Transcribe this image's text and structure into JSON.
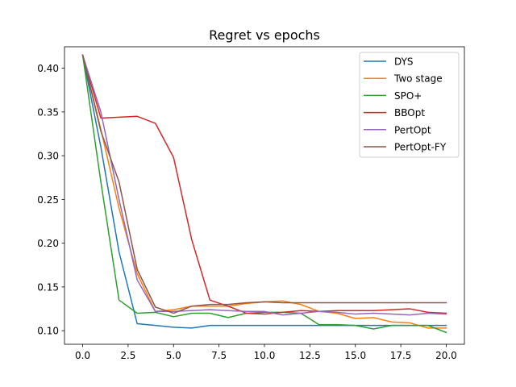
{
  "chart_data": {
    "type": "line",
    "title": "Regret vs epochs",
    "xlabel": "",
    "ylabel": "",
    "xlim": [
      -1.0,
      21.0
    ],
    "ylim": [
      0.0845,
      0.4245
    ],
    "xticks": [
      0.0,
      2.5,
      5.0,
      7.5,
      10.0,
      12.5,
      15.0,
      17.5,
      20.0
    ],
    "xtick_labels": [
      "0.0",
      "2.5",
      "5.0",
      "7.5",
      "10.0",
      "12.5",
      "15.0",
      "17.5",
      "20.0"
    ],
    "yticks": [
      0.1,
      0.15,
      0.2,
      0.25,
      0.3,
      0.35,
      0.4
    ],
    "ytick_labels": [
      "0.10",
      "0.15",
      "0.20",
      "0.25",
      "0.30",
      "0.35",
      "0.40"
    ],
    "grid": false,
    "legend_position": "top-right",
    "x": [
      0,
      1,
      2,
      3,
      4,
      5,
      6,
      7,
      8,
      9,
      10,
      11,
      12,
      13,
      14,
      15,
      16,
      17,
      18,
      19,
      20
    ],
    "series": [
      {
        "name": "DYS",
        "color": "#1f77b4",
        "values": [
          0.415,
          0.31,
          0.19,
          0.108,
          0.106,
          0.104,
          0.103,
          0.106,
          0.106,
          0.106,
          0.106,
          0.106,
          0.106,
          0.106,
          0.106,
          0.106,
          0.106,
          0.106,
          0.106,
          0.106,
          0.106
        ]
      },
      {
        "name": "Two stage",
        "color": "#ff7f0e",
        "values": [
          0.415,
          0.33,
          0.24,
          0.165,
          0.122,
          0.124,
          0.128,
          0.128,
          0.128,
          0.131,
          0.133,
          0.134,
          0.13,
          0.122,
          0.12,
          0.114,
          0.115,
          0.11,
          0.109,
          0.103,
          0.103
        ]
      },
      {
        "name": "SPO+",
        "color": "#2ca02c",
        "values": [
          0.415,
          0.27,
          0.135,
          0.12,
          0.121,
          0.116,
          0.12,
          0.12,
          0.115,
          0.12,
          0.121,
          0.121,
          0.12,
          0.107,
          0.107,
          0.106,
          0.102,
          0.106,
          0.106,
          0.106,
          0.098
        ]
      },
      {
        "name": "BBOpt",
        "color": "#d62728",
        "values": [
          0.415,
          0.343,
          0.344,
          0.345,
          0.337,
          0.298,
          0.204,
          0.135,
          0.128,
          0.12,
          0.119,
          0.121,
          0.123,
          0.122,
          0.123,
          0.123,
          0.123,
          0.124,
          0.125,
          0.121,
          0.12
        ]
      },
      {
        "name": "PertOpt",
        "color": "#9467bd",
        "values": [
          0.415,
          0.35,
          0.25,
          0.158,
          0.122,
          0.122,
          0.123,
          0.124,
          0.123,
          0.122,
          0.122,
          0.118,
          0.12,
          0.122,
          0.121,
          0.119,
          0.12,
          0.119,
          0.118,
          0.12,
          0.119
        ]
      },
      {
        "name": "PertOpt-FY",
        "color": "#8c564b",
        "values": [
          0.415,
          0.328,
          0.27,
          0.17,
          0.127,
          0.12,
          0.128,
          0.13,
          0.13,
          0.132,
          0.133,
          0.132,
          0.132,
          0.132,
          0.132,
          0.132,
          0.132,
          0.132,
          0.132,
          0.132,
          0.132
        ]
      }
    ]
  }
}
